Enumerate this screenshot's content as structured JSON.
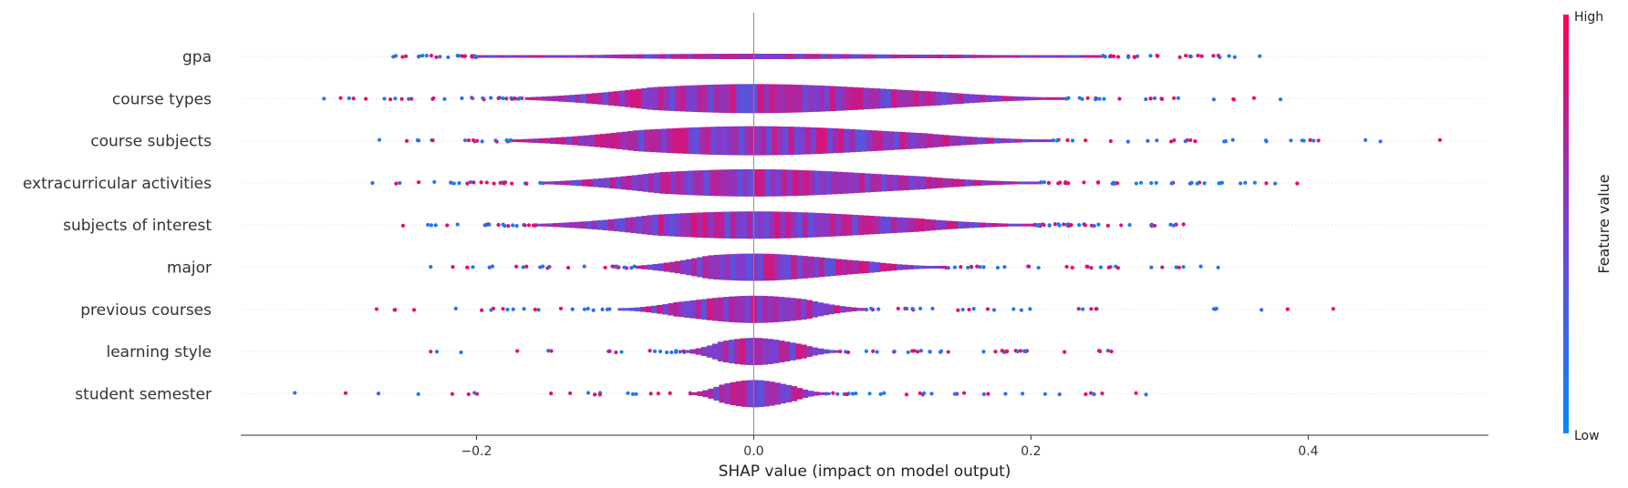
{
  "chart_data": {
    "type": "scatter",
    "subtype": "shap-layered-violin",
    "title": "",
    "xlabel": "SHAP value (impact on model output)",
    "ylabel": "",
    "xlim": [
      -0.37,
      0.53
    ],
    "xticks": [
      -0.2,
      0.0,
      0.2,
      0.4
    ],
    "xtick_labels": [
      "−0.2",
      "0.0",
      "0.2",
      "0.4"
    ],
    "grid": false,
    "colorbar": {
      "title": "Feature value",
      "high_label": "High",
      "low_label": "Low",
      "low_color": "#008bfb",
      "mid_color": "#7a3fd0",
      "high_color": "#ff0052"
    },
    "features": [
      {
        "name": "gpa",
        "min": -0.26,
        "max": 0.365,
        "core": [
          -0.2,
          0.25
        ],
        "halfwidth": 3,
        "seed": 11
      },
      {
        "name": "course types",
        "min": -0.31,
        "max": 0.38,
        "core": [
          -0.165,
          0.225
        ],
        "halfwidth": 16,
        "seed": 23
      },
      {
        "name": "course subjects",
        "min": -0.27,
        "max": 0.495,
        "core": [
          -0.175,
          0.215
        ],
        "halfwidth": 16,
        "seed": 37
      },
      {
        "name": "extracurricular activities",
        "min": -0.275,
        "max": 0.392,
        "core": [
          -0.152,
          0.207
        ],
        "halfwidth": 15,
        "seed": 41
      },
      {
        "name": "subjects of interest",
        "min": -0.253,
        "max": 0.31,
        "core": [
          -0.157,
          0.202
        ],
        "halfwidth": 15,
        "seed": 53
      },
      {
        "name": "major",
        "min": -0.233,
        "max": 0.335,
        "core": [
          -0.085,
          0.138
        ],
        "halfwidth": 15,
        "seed": 67
      },
      {
        "name": "previous courses",
        "min": -0.272,
        "max": 0.418,
        "core": [
          -0.098,
          0.08
        ],
        "halfwidth": 15,
        "seed": 71
      },
      {
        "name": "learning style",
        "min": -0.233,
        "max": 0.258,
        "core": [
          -0.05,
          0.062
        ],
        "halfwidth": 15,
        "seed": 83
      },
      {
        "name": "student semester",
        "min": -0.331,
        "max": 0.283,
        "core": [
          -0.045,
          0.052
        ],
        "halfwidth": 15,
        "seed": 97
      }
    ]
  }
}
